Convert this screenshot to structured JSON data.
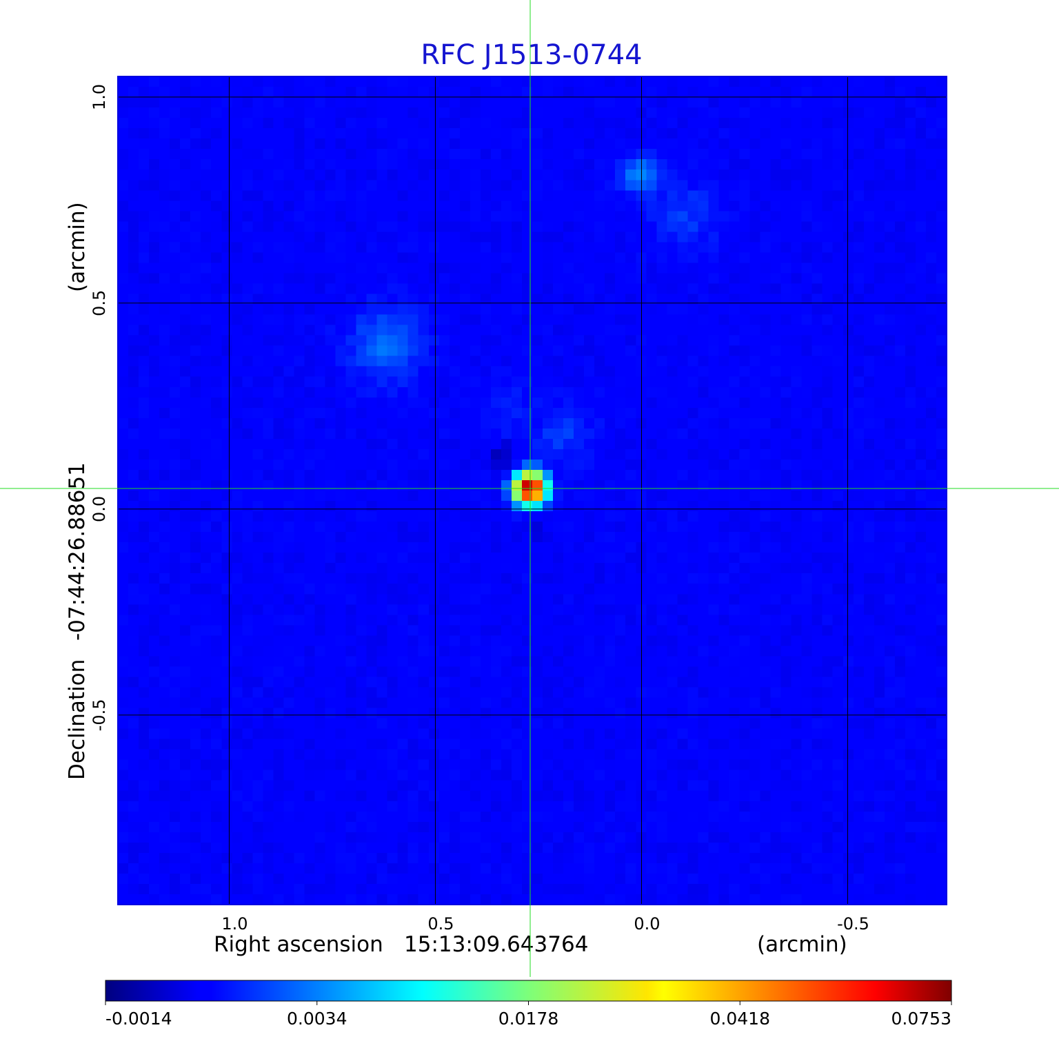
{
  "chart_data": {
    "type": "heatmap",
    "title": "RFC J1513-0744",
    "colormap": "jet",
    "xlabel": {
      "prefix": "Right ascension",
      "center": "15:13:09.643764",
      "unit": "(arcmin)"
    },
    "ylabel": {
      "prefix": "Declination",
      "center": "-07:44:26.88651",
      "unit": "(arcmin)"
    },
    "xlim": [
      1.27,
      -0.74
    ],
    "ylim": [
      -0.96,
      1.05
    ],
    "x_ticks": [
      {
        "value": 1.0,
        "label": "1.0"
      },
      {
        "value": 0.5,
        "label": "0.5"
      },
      {
        "value": 0.0,
        "label": "0.0"
      },
      {
        "value": -0.5,
        "label": "-0.5"
      }
    ],
    "y_ticks": [
      {
        "value": 1.0,
        "label": "1.0"
      },
      {
        "value": 0.5,
        "label": "0.5"
      },
      {
        "value": 0.0,
        "label": "0.0"
      },
      {
        "value": -0.5,
        "label": "-0.5"
      }
    ],
    "grid": true,
    "crosshair": {
      "x": 0.27,
      "y": 0.05
    },
    "colorbar": {
      "orientation": "horizontal",
      "placement": "bottom",
      "ticks": [
        "-0.0014",
        "0.0034",
        "0.0178",
        "0.0418",
        "0.0753"
      ]
    },
    "sources": [
      {
        "x": 0.27,
        "y": 0.05,
        "peak": 0.0753,
        "sigma": 0.022,
        "note": "peak"
      },
      {
        "x": 0.005,
        "y": 0.81,
        "peak": 0.0028,
        "sigma": 0.03
      },
      {
        "x": -0.1,
        "y": 0.71,
        "peak": 0.0012,
        "sigma": 0.06
      },
      {
        "x": 0.62,
        "y": 0.4,
        "peak": 0.0022,
        "sigma": 0.06
      },
      {
        "x": 0.19,
        "y": 0.18,
        "peak": 0.0012,
        "sigma": 0.05
      },
      {
        "x": 0.33,
        "y": 0.24,
        "peak": 0.0008,
        "sigma": 0.04
      }
    ],
    "negatives": [
      {
        "x": 0.34,
        "y": 0.13,
        "depth": -0.0012,
        "sigma": 0.022
      },
      {
        "x": 0.26,
        "y": -0.05,
        "depth": -0.0008,
        "sigma": 0.02
      }
    ]
  }
}
